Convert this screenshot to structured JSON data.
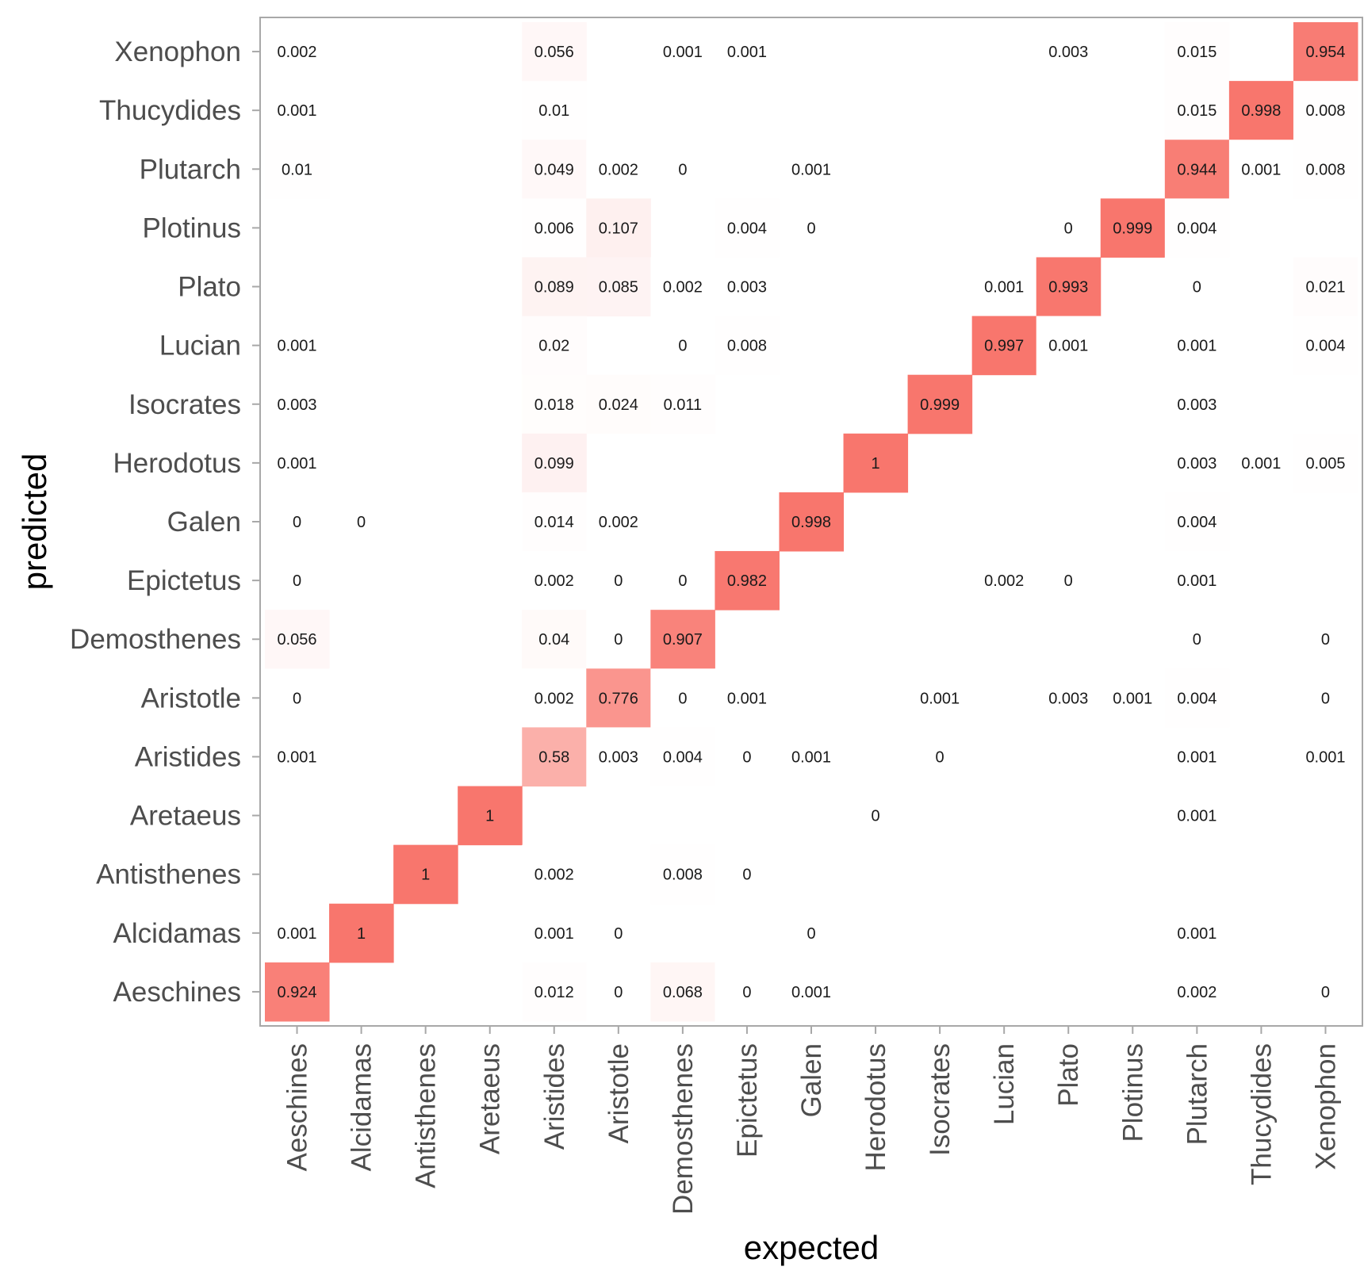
{
  "chart_data": {
    "type": "heatmap",
    "xlabel": "expected",
    "ylabel": "predicted",
    "x_categories": [
      "Aeschines",
      "Alcidamas",
      "Antisthenes",
      "Aretaeus",
      "Aristides",
      "Aristotle",
      "Demosthenes",
      "Epictetus",
      "Galen",
      "Herodotus",
      "Isocrates",
      "Lucian",
      "Plato",
      "Plotinus",
      "Plutarch",
      "Thucydides",
      "Xenophon"
    ],
    "y_categories": [
      "Aeschines",
      "Alcidamas",
      "Antisthenes",
      "Aretaeus",
      "Aristides",
      "Aristotle",
      "Demosthenes",
      "Epictetus",
      "Galen",
      "Herodotus",
      "Isocrates",
      "Lucian",
      "Plato",
      "Plotinus",
      "Plutarch",
      "Thucydides",
      "Xenophon"
    ],
    "color_low": "#ffffff",
    "color_high": "#f8766d",
    "grid": false,
    "legend": "none",
    "cells": [
      {
        "expected": "Aeschines",
        "predicted": "Xenophon",
        "value": 0.002,
        "label": "0.002"
      },
      {
        "expected": "Aristides",
        "predicted": "Xenophon",
        "value": 0.056,
        "label": "0.056"
      },
      {
        "expected": "Demosthenes",
        "predicted": "Xenophon",
        "value": 0.001,
        "label": "0.001"
      },
      {
        "expected": "Epictetus",
        "predicted": "Xenophon",
        "value": 0.001,
        "label": "0.001"
      },
      {
        "expected": "Plato",
        "predicted": "Xenophon",
        "value": 0.003,
        "label": "0.003"
      },
      {
        "expected": "Plutarch",
        "predicted": "Xenophon",
        "value": 0.015,
        "label": "0.015"
      },
      {
        "expected": "Xenophon",
        "predicted": "Xenophon",
        "value": 0.954,
        "label": "0.954"
      },
      {
        "expected": "Aeschines",
        "predicted": "Thucydides",
        "value": 0.001,
        "label": "0.001"
      },
      {
        "expected": "Aristides",
        "predicted": "Thucydides",
        "value": 0.01,
        "label": "0.01"
      },
      {
        "expected": "Plutarch",
        "predicted": "Thucydides",
        "value": 0.015,
        "label": "0.015"
      },
      {
        "expected": "Thucydides",
        "predicted": "Thucydides",
        "value": 0.998,
        "label": "0.998"
      },
      {
        "expected": "Xenophon",
        "predicted": "Thucydides",
        "value": 0.008,
        "label": "0.008"
      },
      {
        "expected": "Aeschines",
        "predicted": "Plutarch",
        "value": 0.01,
        "label": "0.01"
      },
      {
        "expected": "Aristides",
        "predicted": "Plutarch",
        "value": 0.049,
        "label": "0.049"
      },
      {
        "expected": "Aristotle",
        "predicted": "Plutarch",
        "value": 0.002,
        "label": "0.002"
      },
      {
        "expected": "Demosthenes",
        "predicted": "Plutarch",
        "value": 0,
        "label": "0"
      },
      {
        "expected": "Galen",
        "predicted": "Plutarch",
        "value": 0.001,
        "label": "0.001"
      },
      {
        "expected": "Plutarch",
        "predicted": "Plutarch",
        "value": 0.944,
        "label": "0.944"
      },
      {
        "expected": "Thucydides",
        "predicted": "Plutarch",
        "value": 0.001,
        "label": "0.001"
      },
      {
        "expected": "Xenophon",
        "predicted": "Plutarch",
        "value": 0.008,
        "label": "0.008"
      },
      {
        "expected": "Aristides",
        "predicted": "Plotinus",
        "value": 0.006,
        "label": "0.006"
      },
      {
        "expected": "Aristotle",
        "predicted": "Plotinus",
        "value": 0.107,
        "label": "0.107"
      },
      {
        "expected": "Epictetus",
        "predicted": "Plotinus",
        "value": 0.004,
        "label": "0.004"
      },
      {
        "expected": "Galen",
        "predicted": "Plotinus",
        "value": 0,
        "label": "0"
      },
      {
        "expected": "Plato",
        "predicted": "Plotinus",
        "value": 0,
        "label": "0"
      },
      {
        "expected": "Plotinus",
        "predicted": "Plotinus",
        "value": 0.999,
        "label": "0.999"
      },
      {
        "expected": "Plutarch",
        "predicted": "Plotinus",
        "value": 0.004,
        "label": "0.004"
      },
      {
        "expected": "Aristides",
        "predicted": "Plato",
        "value": 0.089,
        "label": "0.089"
      },
      {
        "expected": "Aristotle",
        "predicted": "Plato",
        "value": 0.085,
        "label": "0.085"
      },
      {
        "expected": "Demosthenes",
        "predicted": "Plato",
        "value": 0.002,
        "label": "0.002"
      },
      {
        "expected": "Epictetus",
        "predicted": "Plato",
        "value": 0.003,
        "label": "0.003"
      },
      {
        "expected": "Lucian",
        "predicted": "Plato",
        "value": 0.001,
        "label": "0.001"
      },
      {
        "expected": "Plato",
        "predicted": "Plato",
        "value": 0.993,
        "label": "0.993"
      },
      {
        "expected": "Plutarch",
        "predicted": "Plato",
        "value": 0,
        "label": "0"
      },
      {
        "expected": "Xenophon",
        "predicted": "Plato",
        "value": 0.021,
        "label": "0.021"
      },
      {
        "expected": "Aeschines",
        "predicted": "Lucian",
        "value": 0.001,
        "label": "0.001"
      },
      {
        "expected": "Aristides",
        "predicted": "Lucian",
        "value": 0.02,
        "label": "0.02"
      },
      {
        "expected": "Demosthenes",
        "predicted": "Lucian",
        "value": 0,
        "label": "0"
      },
      {
        "expected": "Epictetus",
        "predicted": "Lucian",
        "value": 0.008,
        "label": "0.008"
      },
      {
        "expected": "Lucian",
        "predicted": "Lucian",
        "value": 0.997,
        "label": "0.997"
      },
      {
        "expected": "Plato",
        "predicted": "Lucian",
        "value": 0.001,
        "label": "0.001"
      },
      {
        "expected": "Plutarch",
        "predicted": "Lucian",
        "value": 0.001,
        "label": "0.001"
      },
      {
        "expected": "Xenophon",
        "predicted": "Lucian",
        "value": 0.004,
        "label": "0.004"
      },
      {
        "expected": "Aeschines",
        "predicted": "Isocrates",
        "value": 0.003,
        "label": "0.003"
      },
      {
        "expected": "Aristides",
        "predicted": "Isocrates",
        "value": 0.018,
        "label": "0.018"
      },
      {
        "expected": "Aristotle",
        "predicted": "Isocrates",
        "value": 0.024,
        "label": "0.024"
      },
      {
        "expected": "Demosthenes",
        "predicted": "Isocrates",
        "value": 0.011,
        "label": "0.011"
      },
      {
        "expected": "Isocrates",
        "predicted": "Isocrates",
        "value": 0.999,
        "label": "0.999"
      },
      {
        "expected": "Plutarch",
        "predicted": "Isocrates",
        "value": 0.003,
        "label": "0.003"
      },
      {
        "expected": "Aeschines",
        "predicted": "Herodotus",
        "value": 0.001,
        "label": "0.001"
      },
      {
        "expected": "Aristides",
        "predicted": "Herodotus",
        "value": 0.099,
        "label": "0.099"
      },
      {
        "expected": "Herodotus",
        "predicted": "Herodotus",
        "value": 1,
        "label": "1"
      },
      {
        "expected": "Plutarch",
        "predicted": "Herodotus",
        "value": 0.003,
        "label": "0.003"
      },
      {
        "expected": "Thucydides",
        "predicted": "Herodotus",
        "value": 0.001,
        "label": "0.001"
      },
      {
        "expected": "Xenophon",
        "predicted": "Herodotus",
        "value": 0.005,
        "label": "0.005"
      },
      {
        "expected": "Aeschines",
        "predicted": "Galen",
        "value": 0,
        "label": "0"
      },
      {
        "expected": "Alcidamas",
        "predicted": "Galen",
        "value": 0,
        "label": "0"
      },
      {
        "expected": "Aristides",
        "predicted": "Galen",
        "value": 0.014,
        "label": "0.014"
      },
      {
        "expected": "Aristotle",
        "predicted": "Galen",
        "value": 0.002,
        "label": "0.002"
      },
      {
        "expected": "Galen",
        "predicted": "Galen",
        "value": 0.998,
        "label": "0.998"
      },
      {
        "expected": "Plutarch",
        "predicted": "Galen",
        "value": 0.004,
        "label": "0.004"
      },
      {
        "expected": "Aeschines",
        "predicted": "Epictetus",
        "value": 0,
        "label": "0"
      },
      {
        "expected": "Aristides",
        "predicted": "Epictetus",
        "value": 0.002,
        "label": "0.002"
      },
      {
        "expected": "Aristotle",
        "predicted": "Epictetus",
        "value": 0,
        "label": "0"
      },
      {
        "expected": "Demosthenes",
        "predicted": "Epictetus",
        "value": 0,
        "label": "0"
      },
      {
        "expected": "Epictetus",
        "predicted": "Epictetus",
        "value": 0.982,
        "label": "0.982"
      },
      {
        "expected": "Lucian",
        "predicted": "Epictetus",
        "value": 0.002,
        "label": "0.002"
      },
      {
        "expected": "Plato",
        "predicted": "Epictetus",
        "value": 0,
        "label": "0"
      },
      {
        "expected": "Plutarch",
        "predicted": "Epictetus",
        "value": 0.001,
        "label": "0.001"
      },
      {
        "expected": "Aeschines",
        "predicted": "Demosthenes",
        "value": 0.056,
        "label": "0.056"
      },
      {
        "expected": "Aristides",
        "predicted": "Demosthenes",
        "value": 0.04,
        "label": "0.04"
      },
      {
        "expected": "Aristotle",
        "predicted": "Demosthenes",
        "value": 0,
        "label": "0"
      },
      {
        "expected": "Demosthenes",
        "predicted": "Demosthenes",
        "value": 0.907,
        "label": "0.907"
      },
      {
        "expected": "Plutarch",
        "predicted": "Demosthenes",
        "value": 0,
        "label": "0"
      },
      {
        "expected": "Xenophon",
        "predicted": "Demosthenes",
        "value": 0,
        "label": "0"
      },
      {
        "expected": "Aeschines",
        "predicted": "Aristotle",
        "value": 0,
        "label": "0"
      },
      {
        "expected": "Aristides",
        "predicted": "Aristotle",
        "value": 0.002,
        "label": "0.002"
      },
      {
        "expected": "Aristotle",
        "predicted": "Aristotle",
        "value": 0.776,
        "label": "0.776"
      },
      {
        "expected": "Demosthenes",
        "predicted": "Aristotle",
        "value": 0,
        "label": "0"
      },
      {
        "expected": "Epictetus",
        "predicted": "Aristotle",
        "value": 0.001,
        "label": "0.001"
      },
      {
        "expected": "Isocrates",
        "predicted": "Aristotle",
        "value": 0.001,
        "label": "0.001"
      },
      {
        "expected": "Plato",
        "predicted": "Aristotle",
        "value": 0.003,
        "label": "0.003"
      },
      {
        "expected": "Plotinus",
        "predicted": "Aristotle",
        "value": 0.001,
        "label": "0.001"
      },
      {
        "expected": "Plutarch",
        "predicted": "Aristotle",
        "value": 0.004,
        "label": "0.004"
      },
      {
        "expected": "Xenophon",
        "predicted": "Aristotle",
        "value": 0,
        "label": "0"
      },
      {
        "expected": "Aeschines",
        "predicted": "Aristides",
        "value": 0.001,
        "label": "0.001"
      },
      {
        "expected": "Aristides",
        "predicted": "Aristides",
        "value": 0.58,
        "label": "0.58"
      },
      {
        "expected": "Aristotle",
        "predicted": "Aristides",
        "value": 0.003,
        "label": "0.003"
      },
      {
        "expected": "Demosthenes",
        "predicted": "Aristides",
        "value": 0.004,
        "label": "0.004"
      },
      {
        "expected": "Epictetus",
        "predicted": "Aristides",
        "value": 0,
        "label": "0"
      },
      {
        "expected": "Galen",
        "predicted": "Aristides",
        "value": 0.001,
        "label": "0.001"
      },
      {
        "expected": "Isocrates",
        "predicted": "Aristides",
        "value": 0,
        "label": "0"
      },
      {
        "expected": "Plutarch",
        "predicted": "Aristides",
        "value": 0.001,
        "label": "0.001"
      },
      {
        "expected": "Xenophon",
        "predicted": "Aristides",
        "value": 0.001,
        "label": "0.001"
      },
      {
        "expected": "Aretaeus",
        "predicted": "Aretaeus",
        "value": 1,
        "label": "1"
      },
      {
        "expected": "Herodotus",
        "predicted": "Aretaeus",
        "value": 0,
        "label": "0"
      },
      {
        "expected": "Plutarch",
        "predicted": "Aretaeus",
        "value": 0.001,
        "label": "0.001"
      },
      {
        "expected": "Antisthenes",
        "predicted": "Antisthenes",
        "value": 1,
        "label": "1"
      },
      {
        "expected": "Aristides",
        "predicted": "Antisthenes",
        "value": 0.002,
        "label": "0.002"
      },
      {
        "expected": "Demosthenes",
        "predicted": "Antisthenes",
        "value": 0.008,
        "label": "0.008"
      },
      {
        "expected": "Epictetus",
        "predicted": "Antisthenes",
        "value": 0,
        "label": "0"
      },
      {
        "expected": "Aeschines",
        "predicted": "Alcidamas",
        "value": 0.001,
        "label": "0.001"
      },
      {
        "expected": "Alcidamas",
        "predicted": "Alcidamas",
        "value": 1,
        "label": "1"
      },
      {
        "expected": "Aristides",
        "predicted": "Alcidamas",
        "value": 0.001,
        "label": "0.001"
      },
      {
        "expected": "Aristotle",
        "predicted": "Alcidamas",
        "value": 0,
        "label": "0"
      },
      {
        "expected": "Galen",
        "predicted": "Alcidamas",
        "value": 0,
        "label": "0"
      },
      {
        "expected": "Plutarch",
        "predicted": "Alcidamas",
        "value": 0.001,
        "label": "0.001"
      },
      {
        "expected": "Aeschines",
        "predicted": "Aeschines",
        "value": 0.924,
        "label": "0.924"
      },
      {
        "expected": "Aristides",
        "predicted": "Aeschines",
        "value": 0.012,
        "label": "0.012"
      },
      {
        "expected": "Aristotle",
        "predicted": "Aeschines",
        "value": 0,
        "label": "0"
      },
      {
        "expected": "Demosthenes",
        "predicted": "Aeschines",
        "value": 0.068,
        "label": "0.068"
      },
      {
        "expected": "Epictetus",
        "predicted": "Aeschines",
        "value": 0,
        "label": "0"
      },
      {
        "expected": "Galen",
        "predicted": "Aeschines",
        "value": 0.001,
        "label": "0.001"
      },
      {
        "expected": "Plutarch",
        "predicted": "Aeschines",
        "value": 0.002,
        "label": "0.002"
      },
      {
        "expected": "Xenophon",
        "predicted": "Aeschines",
        "value": 0,
        "label": "0"
      }
    ]
  }
}
